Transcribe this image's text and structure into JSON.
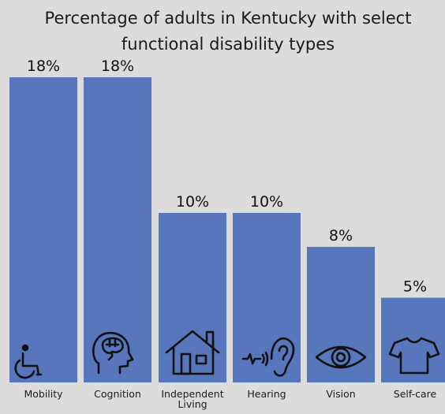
{
  "chart_data": {
    "type": "bar",
    "title": "Percentage of adults in Kentucky with select functional disability types",
    "title_lines": [
      "Percentage of adults in Kentucky with select",
      "functional disability types"
    ],
    "categories": [
      "Mobility",
      "Cognition",
      "Independent Living",
      "Hearing",
      "Vision",
      "Self-care"
    ],
    "category_lines": [
      [
        "Mobility"
      ],
      [
        "Cognition"
      ],
      [
        "Independent",
        "Living"
      ],
      [
        "Hearing"
      ],
      [
        "Vision"
      ],
      [
        "Self-care"
      ]
    ],
    "values": [
      18,
      18,
      10,
      10,
      8,
      5
    ],
    "value_labels": [
      "18%",
      "18%",
      "10%",
      "10%",
      "8%",
      "5%"
    ],
    "icons": [
      "wheelchair-icon",
      "brain-head-icon",
      "house-icon",
      "ear-icon",
      "eye-icon",
      "shirt-icon"
    ],
    "unit": "%",
    "ylim": [
      0,
      18
    ],
    "grid": false,
    "legend": "none",
    "colors": {
      "bar": "#5876bb",
      "background": "#dcdcdc",
      "text": "#111111"
    }
  }
}
